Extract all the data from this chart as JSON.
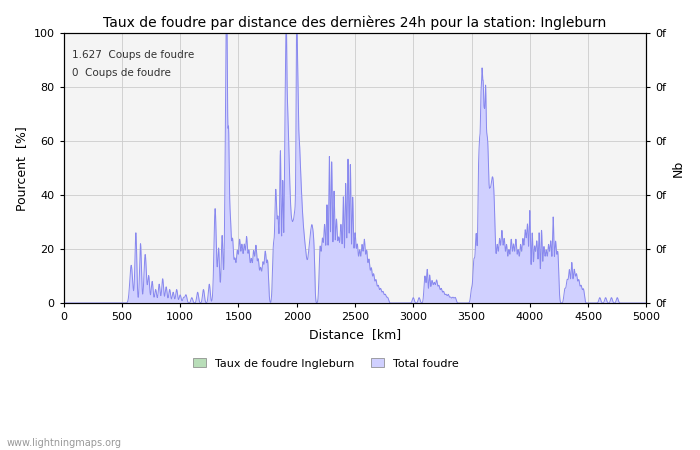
{
  "title": "Taux de foudre par distance des dernières 24h pour la station: Ingleburn",
  "xlabel": "Distance  [km]",
  "ylabel_left": "Pourcent  [%]",
  "ylabel_right": "Nb",
  "annotation_line1": "1.627  Coups de foudre",
  "annotation_line2": "0  Coups de foudre",
  "legend_green": "Taux de foudre Ingleburn",
  "legend_blue": "Total foudre",
  "watermark": "www.lightningmaps.org",
  "xlim": [
    0,
    5000
  ],
  "ylim": [
    0,
    100
  ],
  "xticks": [
    0,
    500,
    1000,
    1500,
    2000,
    2500,
    3000,
    3500,
    4000,
    4500,
    5000
  ],
  "yticks_left": [
    0,
    20,
    40,
    60,
    80,
    100
  ],
  "line_color": "#8888ee",
  "fill_total_color": "#d0d0ff",
  "fill_station_color": "#b8ddb8",
  "bg_color": "#f4f4f4",
  "grid_color": "#cccccc",
  "title_fontsize": 10,
  "tick_fontsize": 8,
  "label_fontsize": 9
}
